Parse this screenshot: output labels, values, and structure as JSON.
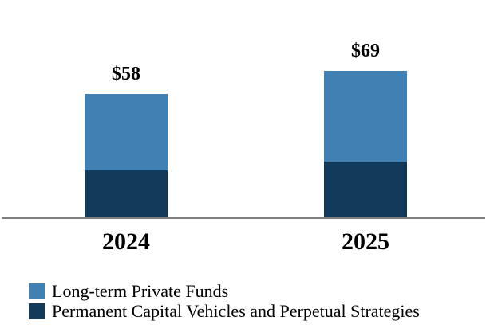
{
  "chart_data": {
    "type": "bar",
    "stacked": true,
    "title": "",
    "xlabel": "",
    "ylabel": "",
    "categories": [
      "2024",
      "2025"
    ],
    "series": [
      {
        "name": "Long-term Private Funds",
        "color": "#4180B2",
        "values": [
          36,
          43
        ]
      },
      {
        "name": "Permanent Capital Vehicles and Perpetual Strategies",
        "color": "#113A5B",
        "values": [
          22,
          26
        ]
      }
    ],
    "totals": [
      58,
      69
    ],
    "totals_labels": [
      "$58",
      "$69"
    ],
    "value_label_prefix": "$",
    "ylim": [
      0,
      75
    ],
    "grid": false,
    "y_axis_visible": false,
    "x_axis_line_color": "#7F7F7F",
    "legend_position": "bottom-left",
    "text_color": "#000000",
    "background_color": "#FFFFFF"
  }
}
